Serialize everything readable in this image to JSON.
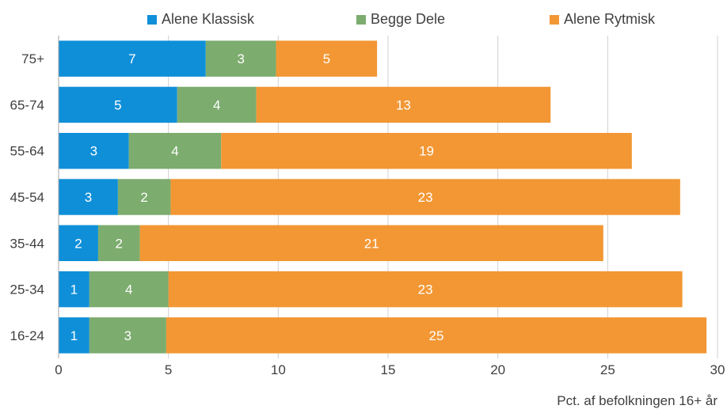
{
  "chart_data": {
    "type": "bar",
    "orientation": "horizontal",
    "stacked": true,
    "categories": [
      "75+",
      "65-74",
      "55-64",
      "45-54",
      "35-44",
      "25-34",
      "16-24"
    ],
    "series": [
      {
        "name": "Alene Klassisk",
        "color": "#0f8fd8",
        "values": [
          6.7,
          5.4,
          3.2,
          2.7,
          1.8,
          1.4,
          1.4
        ],
        "labels": [
          "7",
          "5",
          "3",
          "3",
          "2",
          "1",
          "1"
        ]
      },
      {
        "name": "Begge Dele",
        "color": "#7cac6e",
        "values": [
          3.2,
          3.6,
          4.2,
          2.4,
          1.9,
          3.6,
          3.5
        ],
        "labels": [
          "3",
          "4",
          "4",
          "2",
          "2",
          "4",
          "3"
        ]
      },
      {
        "name": "Alene Rytmisk",
        "color": "#f29734",
        "values": [
          4.6,
          13.4,
          18.7,
          23.2,
          21.1,
          23.4,
          24.6
        ],
        "labels": [
          "5",
          "13",
          "19",
          "23",
          "21",
          "23",
          "25"
        ]
      }
    ],
    "xlim": [
      0,
      30
    ],
    "xticks": [
      "0",
      "5",
      "10",
      "15",
      "20",
      "25",
      "30"
    ],
    "xlabel": "Pct. af befolkningen 16+ år",
    "ylabel": "",
    "grid": "vertical",
    "legend": "top"
  }
}
